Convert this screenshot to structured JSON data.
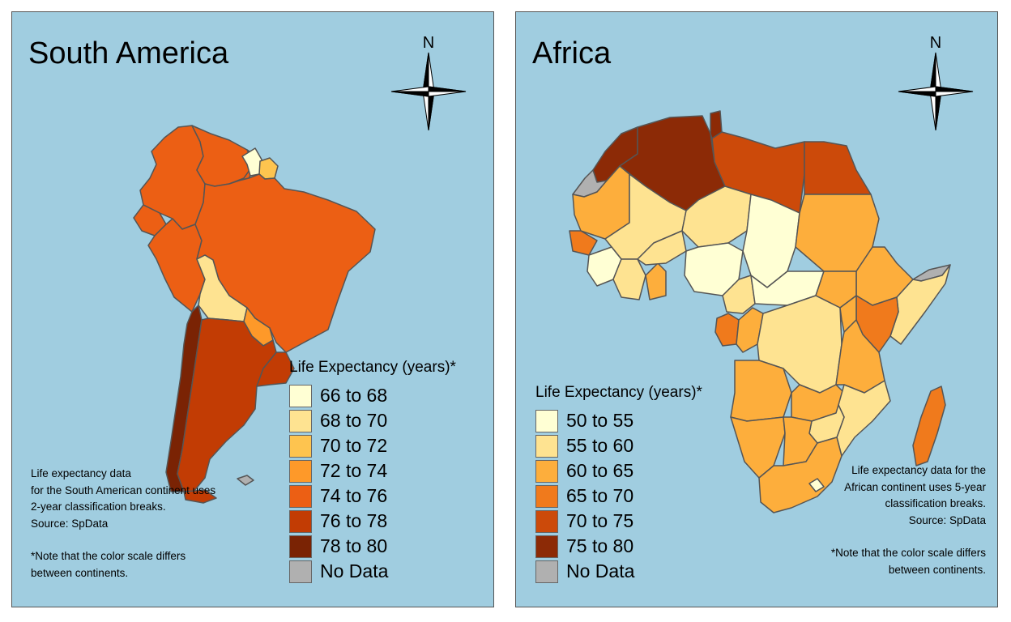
{
  "panels": [
    {
      "title": "South America",
      "compass_label": "N",
      "legend": {
        "title": "Life Expectancy (years)*",
        "items": [
          {
            "label": "66 to 68",
            "color": "#ffffd4"
          },
          {
            "label": "68 to 70",
            "color": "#fee391"
          },
          {
            "label": "70 to 72",
            "color": "#fec44f"
          },
          {
            "label": "72 to 74",
            "color": "#fe9929"
          },
          {
            "label": "74 to 76",
            "color": "#ec5f14"
          },
          {
            "label": "76 to 78",
            "color": "#c23c04"
          },
          {
            "label": "78 to 80",
            "color": "#7a2304"
          },
          {
            "label": "No Data",
            "color": "#b0b0b0"
          }
        ]
      },
      "note_lines": [
        "Life expectancy data",
        "for the South American continent uses",
        "2-year classification breaks.",
        "Source: SpData"
      ],
      "disclaimer_lines": [
        "*Note that the color scale differs",
        "between continents."
      ]
    },
    {
      "title": "Africa",
      "compass_label": "N",
      "legend": {
        "title": "Life Expectancy (years)*",
        "items": [
          {
            "label": "50 to 55",
            "color": "#ffffd4"
          },
          {
            "label": "55 to 60",
            "color": "#fee391"
          },
          {
            "label": "60 to 65",
            "color": "#fdae3c"
          },
          {
            "label": "65 to 70",
            "color": "#f07a1c"
          },
          {
            "label": "70 to 75",
            "color": "#cc4a0a"
          },
          {
            "label": "75 to 80",
            "color": "#8c2a06"
          },
          {
            "label": "No Data",
            "color": "#b0b0b0"
          }
        ]
      },
      "note_lines": [
        "Life expectancy data for the",
        "African continent uses 5-year",
        "classification breaks.",
        "Source: SpData"
      ],
      "disclaimer_lines": [
        "*Note that the color scale differs",
        "between continents."
      ]
    }
  ]
}
